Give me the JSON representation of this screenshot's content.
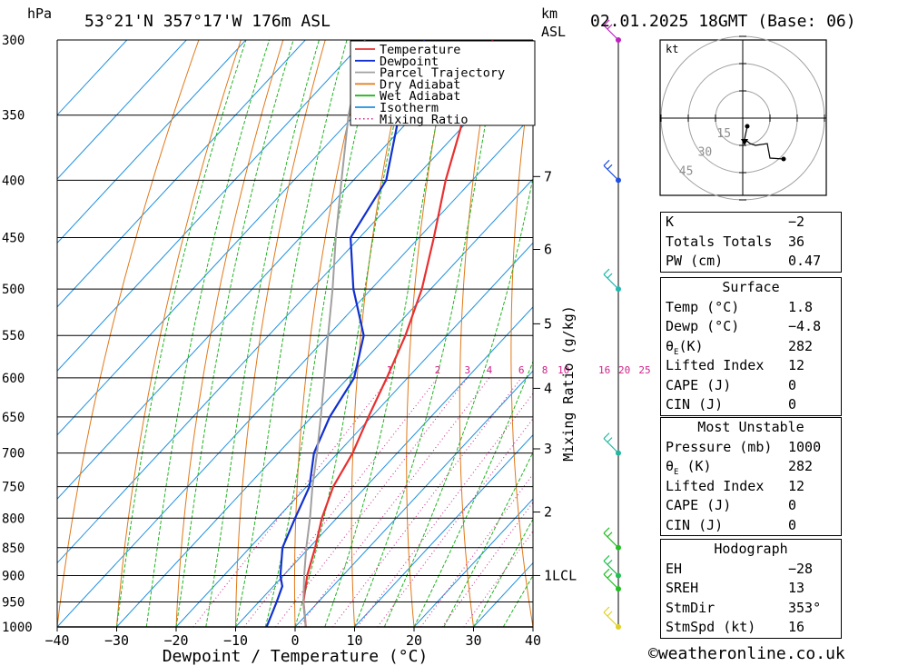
{
  "header": {
    "location": "53°21'N 357°17'W 176m ASL",
    "datetime": "02.01.2025 18GMT (Base: 06)",
    "pressure_unit": "hPa",
    "height_unit_line1": "km",
    "height_unit_line2": "ASL"
  },
  "chart_data": {
    "type": "line",
    "xlabel": "Dewpoint / Temperature (°C)",
    "ylabel": "hPa",
    "right_axis_label": "Mixing Ratio (g/kg)",
    "xlim": [
      -40,
      40
    ],
    "ylim": [
      1000,
      300
    ],
    "x_ticks": [
      "−40",
      "−30",
      "−20",
      "−10",
      "0",
      "10",
      "20",
      "30",
      "40"
    ],
    "pressure_ticks": [
      300,
      350,
      400,
      450,
      500,
      550,
      600,
      650,
      700,
      750,
      800,
      850,
      900,
      950,
      1000
    ],
    "km_ticks": [
      {
        "label": "7",
        "p": 397
      },
      {
        "label": "6",
        "p": 461
      },
      {
        "label": "5",
        "p": 537
      },
      {
        "label": "4",
        "p": 613
      },
      {
        "label": "3",
        "p": 694
      },
      {
        "label": "2",
        "p": 790
      },
      {
        "label": "1LCL",
        "p": 900
      }
    ],
    "mixing_ratio_labels": [
      "1",
      "2",
      "3",
      "4",
      "6",
      "8",
      "10",
      "16",
      "20",
      "25"
    ],
    "legend": [
      {
        "name": "Temperature",
        "color": "#e83030",
        "style": "solid"
      },
      {
        "name": "Dewpoint",
        "color": "#1030d0",
        "style": "solid"
      },
      {
        "name": "Parcel Trajectory",
        "color": "#a0a0a0",
        "style": "solid"
      },
      {
        "name": "Dry Adiabat",
        "color": "#e07818",
        "style": "solid"
      },
      {
        "name": "Wet Adiabat",
        "color": "#22b422",
        "style": "solid"
      },
      {
        "name": "Isotherm",
        "color": "#1e90e0",
        "style": "solid"
      },
      {
        "name": "Mixing Ratio",
        "color": "#d0208a",
        "style": "dotted"
      }
    ],
    "series": [
      {
        "name": "Temperature",
        "color": "#e83030",
        "points": [
          [
            1000,
            1.8
          ],
          [
            950,
            -2.5
          ],
          [
            900,
            -6.0
          ],
          [
            850,
            -9.0
          ],
          [
            800,
            -12.5
          ],
          [
            750,
            -15.5
          ],
          [
            700,
            -17.5
          ],
          [
            650,
            -20.5
          ],
          [
            600,
            -23.5
          ],
          [
            550,
            -27.0
          ],
          [
            500,
            -31.5
          ],
          [
            450,
            -37.5
          ],
          [
            400,
            -44.5
          ],
          [
            350,
            -51.5
          ],
          [
            300,
            -58.5
          ]
        ]
      },
      {
        "name": "Dewpoint",
        "color": "#1030d0",
        "points": [
          [
            1000,
            -4.8
          ],
          [
            950,
            -7.0
          ],
          [
            920,
            -8.5
          ],
          [
            900,
            -10.5
          ],
          [
            850,
            -14.5
          ],
          [
            800,
            -17.0
          ],
          [
            750,
            -19.5
          ],
          [
            700,
            -24.0
          ],
          [
            650,
            -27.0
          ],
          [
            600,
            -29.0
          ],
          [
            550,
            -34.0
          ],
          [
            500,
            -43.0
          ],
          [
            450,
            -51.5
          ],
          [
            400,
            -54.5
          ],
          [
            350,
            -62.5
          ],
          [
            300,
            -70.0
          ]
        ]
      },
      {
        "name": "Parcel Trajectory",
        "color": "#a0a0a0",
        "points": [
          [
            1000,
            1.8
          ],
          [
            950,
            -2.5
          ],
          [
            900,
            -6.5
          ],
          [
            850,
            -10.5
          ],
          [
            800,
            -14.5
          ],
          [
            750,
            -19.0
          ],
          [
            700,
            -23.5
          ],
          [
            650,
            -28.5
          ],
          [
            600,
            -34.0
          ],
          [
            550,
            -40.0
          ],
          [
            500,
            -46.5
          ],
          [
            450,
            -54.0
          ],
          [
            400,
            -62.0
          ],
          [
            350,
            -71.0
          ],
          [
            300,
            -80.0
          ]
        ]
      }
    ],
    "wind_barbs": [
      {
        "p": 300,
        "color": "#c020c0"
      },
      {
        "p": 400,
        "color": "#2050e0"
      },
      {
        "p": 500,
        "color": "#20b8b0"
      },
      {
        "p": 700,
        "color": "#20b8a0"
      },
      {
        "p": 850,
        "color": "#20c020"
      },
      {
        "p": 900,
        "color": "#20c050"
      },
      {
        "p": 925,
        "color": "#20c020"
      },
      {
        "p": 1000,
        "color": "#e0d020"
      }
    ]
  },
  "hodograph": {
    "unit": "kt",
    "ring_labels": [
      "15",
      "30",
      "45"
    ]
  },
  "stats": {
    "rows": [
      {
        "k": "K",
        "v": "−2"
      },
      {
        "k": "Totals Totals",
        "v": "36"
      },
      {
        "k": "PW (cm)",
        "v": "0.47"
      }
    ]
  },
  "surface": {
    "title": "Surface",
    "rows": [
      {
        "k": "Temp (°C)",
        "v": "1.8"
      },
      {
        "k": "Dewp (°C)",
        "v": "−4.8"
      },
      {
        "k": "θE(K)",
        "v": "282"
      },
      {
        "k": "Lifted Index",
        "v": "12"
      },
      {
        "k": "CAPE (J)",
        "v": "0"
      },
      {
        "k": "CIN (J)",
        "v": "0"
      }
    ]
  },
  "most_unstable": {
    "title": "Most Unstable",
    "rows": [
      {
        "k": "Pressure (mb)",
        "v": "1000"
      },
      {
        "k": "θE (K)",
        "v": "282"
      },
      {
        "k": "Lifted Index",
        "v": "12"
      },
      {
        "k": "CAPE (J)",
        "v": "0"
      },
      {
        "k": "CIN (J)",
        "v": "0"
      }
    ]
  },
  "hodo_panel": {
    "title": "Hodograph",
    "rows": [
      {
        "k": "EH",
        "v": "−28"
      },
      {
        "k": "SREH",
        "v": "13"
      },
      {
        "k": "StmDir",
        "v": "353°"
      },
      {
        "k": "StmSpd (kt)",
        "v": "16"
      }
    ]
  },
  "footer": {
    "copyright": "©weatheronline.co.uk"
  }
}
